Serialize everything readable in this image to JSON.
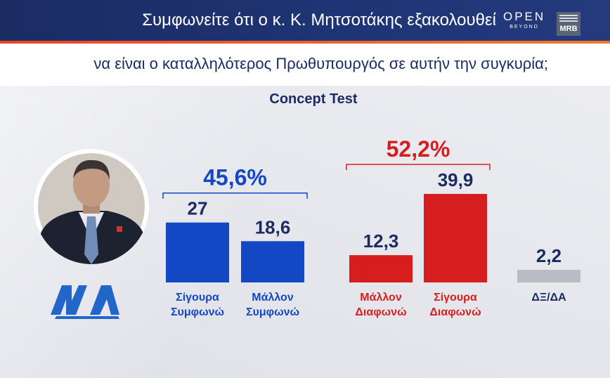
{
  "header": {
    "title": "Συμφωνείτε ότι ο κ. Κ. Μητσοτάκης εξακολουθεί",
    "brand_open": "OPEN",
    "brand_open_sub": "BEYOND",
    "brand_mrb": "MRB"
  },
  "subtitle": "να είναι ο καταλληλότερος Πρωθυπουργός σε αυτήν την συγκυρία;",
  "chart_data": {
    "type": "bar",
    "title": "Concept Test",
    "categories": [
      "Σίγουρα Συμφωνώ",
      "Μάλλον Συμφωνώ",
      "Μάλλον Διαφωνώ",
      "Σίγουρα Διαφωνώ",
      "ΔΞ/ΔΑ"
    ],
    "category_lines": [
      [
        "Σίγουρα",
        "Συμφωνώ"
      ],
      [
        "Μάλλον",
        "Συμφωνώ"
      ],
      [
        "Μάλλον",
        "Διαφωνώ"
      ],
      [
        "Σίγουρα",
        "Διαφωνώ"
      ],
      [
        "ΔΞ/ΔΑ"
      ]
    ],
    "values": [
      27,
      18.6,
      12.3,
      39.9,
      2.2
    ],
    "value_labels": [
      "27",
      "18,6",
      "12,3",
      "39,9",
      "2,2"
    ],
    "colors": [
      "#1347c4",
      "#1347c4",
      "#d71e1e",
      "#d71e1e",
      "#b9bcc4"
    ],
    "groups": [
      {
        "label": "45,6%",
        "color": "#1347c4",
        "members": [
          0,
          1
        ]
      },
      {
        "label": "52,2%",
        "color": "#d71e1e",
        "members": [
          2,
          3
        ]
      }
    ],
    "grid": false,
    "legend": "none"
  },
  "colors": {
    "navy": "#1b2c63",
    "blue": "#1347c4",
    "red": "#d71e1e",
    "grey": "#b9bcc4",
    "accent": "#e8452c"
  },
  "icons": {
    "photo": "politician-portrait-icon",
    "party": "nd-party-logo-icon"
  }
}
